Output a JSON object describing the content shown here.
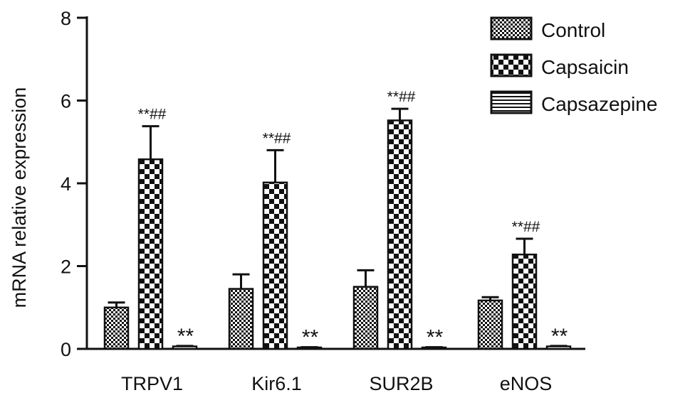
{
  "chart_data": {
    "type": "bar",
    "title": "",
    "xlabel": "",
    "ylabel": "mRNA relative expression",
    "ylim": [
      0,
      8
    ],
    "yticks": [
      0,
      2,
      4,
      6,
      8
    ],
    "grid": false,
    "legend_position": "top-right",
    "categories": [
      "TRPV1",
      "Kir6.1",
      "SUR2B",
      "eNOS"
    ],
    "series": [
      {
        "name": "Control",
        "pattern": "fine-checker",
        "values": [
          1.0,
          1.45,
          1.5,
          1.17
        ],
        "errors": [
          0.12,
          0.35,
          0.4,
          0.08
        ],
        "annotations": [
          "",
          "",
          "",
          ""
        ]
      },
      {
        "name": "Capsaicin",
        "pattern": "coarse-checker",
        "values": [
          4.58,
          4.02,
          5.52,
          2.28
        ],
        "errors": [
          0.8,
          0.78,
          0.28,
          0.38
        ],
        "annotations": [
          "**##",
          "**##",
          "**##",
          "**##"
        ]
      },
      {
        "name": "Capsazepine",
        "pattern": "horizontal-stripes",
        "values": [
          0.06,
          0.03,
          0.03,
          0.06
        ],
        "errors": [
          0.01,
          0.01,
          0.01,
          0.01
        ],
        "annotations": [
          "**",
          "**",
          "**",
          "**"
        ]
      }
    ],
    "colors": {
      "ink": "#111111",
      "background": "#ffffff"
    }
  }
}
